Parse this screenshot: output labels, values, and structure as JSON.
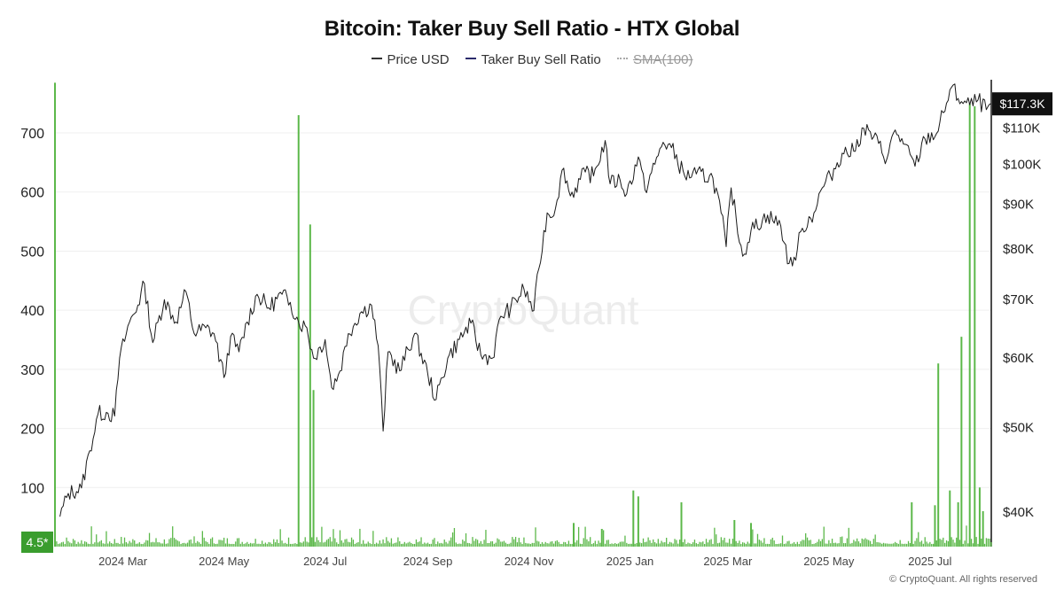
{
  "title": "Bitcoin: Taker Buy Sell Ratio - HTX Global",
  "legend": {
    "price": "Price USD",
    "ratio": "Taker Buy Sell Ratio",
    "sma": "SMA(100)"
  },
  "watermark": "CryptoQuant",
  "footer": "© CryptoQuant. All rights reserved",
  "colors": {
    "ratio": "#5cb84a",
    "price": "#1a1a1a",
    "grid": "#efefef",
    "badge_ratio": "#3a9d2e",
    "badge_price": "#111111"
  },
  "chart_data": {
    "type": "line",
    "title": "Bitcoin: Taker Buy Sell Ratio - HTX Global",
    "x_tick_labels": [
      "2024 Mar",
      "2024 May",
      "2024 Jul",
      "2024 Sep",
      "2024 Nov",
      "2025 Jan",
      "2025 Mar",
      "2025 May",
      "2025 Jul"
    ],
    "x_tick_dates": [
      "2024-03-01",
      "2024-05-01",
      "2024-07-01",
      "2024-09-01",
      "2024-11-01",
      "2025-01-01",
      "2025-03-01",
      "2025-05-01",
      "2025-07-01"
    ],
    "x_range": [
      "2024-01-20",
      "2025-08-07"
    ],
    "left_axis": {
      "series": "Taker Buy Sell Ratio",
      "ticks": [
        100,
        200,
        300,
        400,
        500,
        600,
        700
      ],
      "range": [
        0,
        790
      ]
    },
    "right_axis": {
      "series": "Price USD",
      "scale": "log",
      "ticks": [
        40000,
        50000,
        60000,
        70000,
        80000,
        90000,
        100000,
        110000
      ],
      "tick_labels": [
        "$40K",
        "$50K",
        "$60K",
        "$70K",
        "$80K",
        "$90K",
        "$100K",
        "$110K"
      ],
      "range": [
        36500,
        125000
      ]
    },
    "current_labels": {
      "ratio": "4.5*",
      "price": "$117.3K"
    },
    "series": [
      {
        "name": "Price USD",
        "axis": "right",
        "points": [
          [
            "2024-01-23",
            39500
          ],
          [
            "2024-01-28",
            42000
          ],
          [
            "2024-02-05",
            42600
          ],
          [
            "2024-02-10",
            47000
          ],
          [
            "2024-02-15",
            51800
          ],
          [
            "2024-02-20",
            52000
          ],
          [
            "2024-02-25",
            51500
          ],
          [
            "2024-02-28",
            60000
          ],
          [
            "2024-03-05",
            66000
          ],
          [
            "2024-03-10",
            69000
          ],
          [
            "2024-03-14",
            73000
          ],
          [
            "2024-03-19",
            62500
          ],
          [
            "2024-03-26",
            70000
          ],
          [
            "2024-04-02",
            66000
          ],
          [
            "2024-04-08",
            71500
          ],
          [
            "2024-04-13",
            64000
          ],
          [
            "2024-04-20",
            65000
          ],
          [
            "2024-04-25",
            64000
          ],
          [
            "2024-05-01",
            57000
          ],
          [
            "2024-05-05",
            63500
          ],
          [
            "2024-05-10",
            61000
          ],
          [
            "2024-05-15",
            66000
          ],
          [
            "2024-05-21",
            71000
          ],
          [
            "2024-05-28",
            68500
          ],
          [
            "2024-06-05",
            71000
          ],
          [
            "2024-06-10",
            69500
          ],
          [
            "2024-06-15",
            66000
          ],
          [
            "2024-06-20",
            65000
          ],
          [
            "2024-06-24",
            60000
          ],
          [
            "2024-07-01",
            63000
          ],
          [
            "2024-07-05",
            55500
          ],
          [
            "2024-07-10",
            58000
          ],
          [
            "2024-07-15",
            64000
          ],
          [
            "2024-07-22",
            67500
          ],
          [
            "2024-07-29",
            69000
          ],
          [
            "2024-08-02",
            62000
          ],
          [
            "2024-08-05",
            49500
          ],
          [
            "2024-08-08",
            61000
          ],
          [
            "2024-08-15",
            58000
          ],
          [
            "2024-08-24",
            64000
          ],
          [
            "2024-09-01",
            57500
          ],
          [
            "2024-09-06",
            53800
          ],
          [
            "2024-09-13",
            60000
          ],
          [
            "2024-09-20",
            63000
          ],
          [
            "2024-09-27",
            65800
          ],
          [
            "2024-10-03",
            60500
          ],
          [
            "2024-10-10",
            60000
          ],
          [
            "2024-10-15",
            67000
          ],
          [
            "2024-10-21",
            68500
          ],
          [
            "2024-10-29",
            72000
          ],
          [
            "2024-11-04",
            68000
          ],
          [
            "2024-11-07",
            76000
          ],
          [
            "2024-11-12",
            88000
          ],
          [
            "2024-11-15",
            87000
          ],
          [
            "2024-11-22",
            99000
          ],
          [
            "2024-11-26",
            92000
          ],
          [
            "2024-12-05",
            98000
          ],
          [
            "2024-12-10",
            97000
          ],
          [
            "2024-12-17",
            106500
          ],
          [
            "2024-12-20",
            95000
          ],
          [
            "2024-12-26",
            96000
          ],
          [
            "2024-12-30",
            92500
          ],
          [
            "2025-01-06",
            102000
          ],
          [
            "2025-01-10",
            93500
          ],
          [
            "2025-01-16",
            100000
          ],
          [
            "2025-01-21",
            106000
          ],
          [
            "2025-01-26",
            104500
          ],
          [
            "2025-02-03",
            97000
          ],
          [
            "2025-02-10",
            97500
          ],
          [
            "2025-02-20",
            96500
          ],
          [
            "2025-02-25",
            88000
          ],
          [
            "2025-02-28",
            80500
          ],
          [
            "2025-03-03",
            94000
          ],
          [
            "2025-03-10",
            78500
          ],
          [
            "2025-03-15",
            84000
          ],
          [
            "2025-03-25",
            87500
          ],
          [
            "2025-04-02",
            85000
          ],
          [
            "2025-04-07",
            77000
          ],
          [
            "2025-04-09",
            76500
          ],
          [
            "2025-04-15",
            84500
          ],
          [
            "2025-04-22",
            88000
          ],
          [
            "2025-04-27",
            94000
          ],
          [
            "2025-05-02",
            97000
          ],
          [
            "2025-05-09",
            103000
          ],
          [
            "2025-05-16",
            103500
          ],
          [
            "2025-05-22",
            110000
          ],
          [
            "2025-05-28",
            107500
          ],
          [
            "2025-06-05",
            101500
          ],
          [
            "2025-06-10",
            109500
          ],
          [
            "2025-06-15",
            105500
          ],
          [
            "2025-06-22",
            99500
          ],
          [
            "2025-06-28",
            107000
          ],
          [
            "2025-07-05",
            108500
          ],
          [
            "2025-07-11",
            117500
          ],
          [
            "2025-07-14",
            122500
          ],
          [
            "2025-07-20",
            118000
          ],
          [
            "2025-07-25",
            117000
          ],
          [
            "2025-07-30",
            118500
          ],
          [
            "2025-08-04",
            115500
          ],
          [
            "2025-08-07",
            117300
          ]
        ]
      },
      {
        "name": "Taker Buy Sell Ratio",
        "axis": "left",
        "spikes": [
          [
            "2024-01-20",
            785
          ],
          [
            "2024-06-15",
            730
          ],
          [
            "2024-06-22",
            545
          ],
          [
            "2024-06-24",
            265
          ],
          [
            "2024-11-28",
            40
          ],
          [
            "2024-12-15",
            30
          ],
          [
            "2025-01-03",
            95
          ],
          [
            "2025-01-06",
            85
          ],
          [
            "2025-02-01",
            75
          ],
          [
            "2025-03-05",
            45
          ],
          [
            "2025-03-15",
            40
          ],
          [
            "2025-06-20",
            75
          ],
          [
            "2025-07-04",
            70
          ],
          [
            "2025-07-06",
            310
          ],
          [
            "2025-07-13",
            95
          ],
          [
            "2025-07-18",
            75
          ],
          [
            "2025-07-20",
            355
          ],
          [
            "2025-07-25",
            750
          ],
          [
            "2025-07-28",
            745
          ],
          [
            "2025-07-31",
            100
          ],
          [
            "2025-08-02",
            60
          ]
        ],
        "baseline": 4.5
      },
      {
        "name": "SMA(100)",
        "axis": "left",
        "hidden": true
      }
    ]
  }
}
